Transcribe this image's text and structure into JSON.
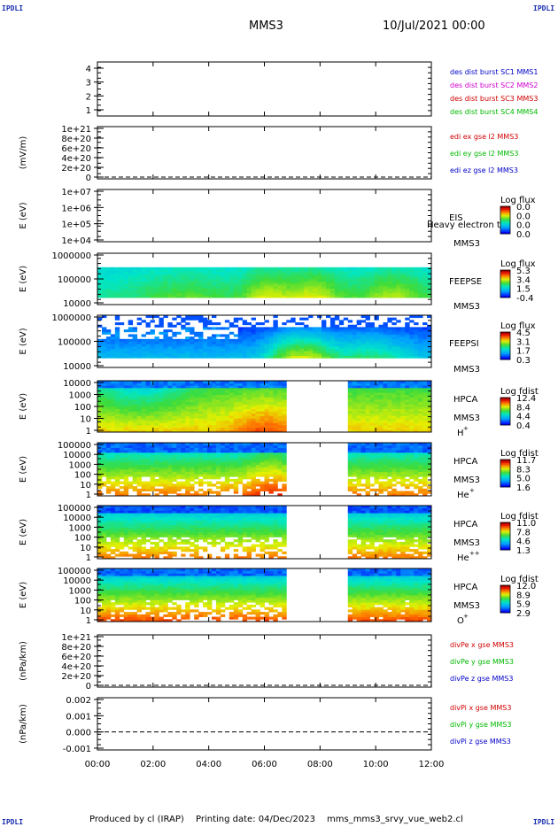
{
  "header": {
    "corner_label": "IPDLI",
    "spacecraft": "MMS3",
    "date": "10/Jul/2021 00:00"
  },
  "footer": {
    "produced_by": "Produced by cl (IRAP)",
    "printing_date": "Printing date: 04/Dec/2023",
    "filename": "mms_mms3_srvy_vue_web2.cl"
  },
  "colors": {
    "axis": "#000000",
    "blue_label": "#0000c8",
    "magenta_label": "#d000d0",
    "red_label": "#d00000",
    "green_label": "#00b800",
    "spectrogram_low": "#0000ff",
    "spectrogram_high": "#b40000"
  },
  "chart_data": {
    "x_tick_labels": [
      "00:00",
      "02:00",
      "04:00",
      "06:00",
      "08:00",
      "10:00",
      "12:00"
    ],
    "x_hours": [
      0,
      2,
      4,
      6,
      8,
      10,
      12
    ],
    "panels": [
      {
        "type": "line",
        "yticks": [
          "1",
          "2",
          "3",
          "4"
        ],
        "legend": [
          {
            "text": "des dist burst SC1 MMS1",
            "color": "#0000c8"
          },
          {
            "text": "des dist burst SC2 MMS2",
            "color": "#d000d0"
          },
          {
            "text": "des dist burst SC3 MMS3",
            "color": "#d00000"
          },
          {
            "text": "des dist burst SC4 MMS4",
            "color": "#00b800"
          }
        ]
      },
      {
        "type": "line",
        "ylabel": "(mV/m)",
        "yticks": [
          "1e+21",
          "8e+20",
          "6e+20",
          "4e+20",
          "2e+20",
          "0"
        ],
        "dashed_zero": true,
        "legend": [
          {
            "text": "edi ex gse l2 MMS3",
            "color": "#d00000"
          },
          {
            "text": "edi ey gse l2 MMS3",
            "color": "#00b800"
          },
          {
            "text": "edi ez gse l2 MMS3",
            "color": "#0000c8"
          }
        ]
      },
      {
        "type": "heatmap",
        "ylabel": "E (eV)",
        "yticks": [
          "1e+07",
          "1e+06",
          "1e+05",
          "1e+04"
        ],
        "instrument": "EIS",
        "spacecraft": "MMS3",
        "overlay_text": "Heavy electron to",
        "cbar_title": "Log flux",
        "cbar_values": [
          "0.0",
          "0.0",
          "0.0",
          "0.0"
        ],
        "profile": "empty"
      },
      {
        "type": "heatmap",
        "ylabel": "E (eV)",
        "yticks": [
          "1000000",
          "100000",
          "10000"
        ],
        "instrument": "FEEPSE",
        "spacecraft": "MMS3",
        "cbar_title": "Log flux",
        "cbar_values": [
          "5.3",
          "3.4",
          "1.5",
          "-0.4"
        ],
        "profile": "feepse",
        "gaps": []
      },
      {
        "type": "heatmap",
        "ylabel": "E (eV)",
        "yticks": [
          "1000000",
          "100000",
          "10000"
        ],
        "instrument": "FEEPSI",
        "spacecraft": "MMS3",
        "cbar_title": "Log flux",
        "cbar_values": [
          "4.5",
          "3.1",
          "1.7",
          "0.3"
        ],
        "profile": "feepsi",
        "gaps": []
      },
      {
        "type": "heatmap",
        "ylabel": "E (eV)",
        "yticks": [
          "10000",
          "1000",
          "100",
          "10",
          "1"
        ],
        "instrument": "HPCA",
        "spacecraft": "MMS3",
        "species": "H",
        "species_sup": "+",
        "cbar_title": "Log fdist",
        "cbar_values": [
          "12.4",
          "8.4",
          "4.4",
          "0.4"
        ],
        "profile": "hpca_h",
        "gaps": [
          [
            6.85,
            9.0
          ]
        ]
      },
      {
        "type": "heatmap",
        "ylabel": "E (eV)",
        "yticks": [
          "100000",
          "10000",
          "1000",
          "100",
          "10",
          "1"
        ],
        "instrument": "HPCA",
        "spacecraft": "MMS3",
        "species": "He",
        "species_sup": "+",
        "cbar_title": "Log fdist",
        "cbar_values": [
          "11.7",
          "8.3",
          "5.0",
          "1.6"
        ],
        "profile": "hpca_he",
        "gaps": [
          [
            6.85,
            9.0
          ]
        ]
      },
      {
        "type": "heatmap",
        "ylabel": "E (eV)",
        "yticks": [
          "100000",
          "10000",
          "1000",
          "100",
          "10",
          "1"
        ],
        "instrument": "HPCA",
        "spacecraft": "MMS3",
        "species": "He",
        "species_sup": "++",
        "cbar_title": "Log fdist",
        "cbar_values": [
          "11.0",
          "7.8",
          "4.6",
          "1.3"
        ],
        "profile": "hpca_hepp",
        "gaps": [
          [
            6.85,
            9.0
          ]
        ]
      },
      {
        "type": "heatmap",
        "ylabel": "E (eV)",
        "yticks": [
          "100000",
          "10000",
          "1000",
          "100",
          "10",
          "1"
        ],
        "instrument": "HPCA",
        "spacecraft": "MMS3",
        "species": "O",
        "species_sup": "+",
        "cbar_title": "Log fdist",
        "cbar_values": [
          "12.0",
          "8.9",
          "5.9",
          "2.9"
        ],
        "profile": "hpca_o",
        "gaps": [
          [
            6.85,
            9.0
          ]
        ]
      },
      {
        "type": "line",
        "ylabel": "(nPa/km)",
        "yticks": [
          "1e+21",
          "8e+20",
          "6e+20",
          "4e+20",
          "2e+20",
          "0"
        ],
        "dashed_zero": true,
        "legend": [
          {
            "text": "divPe x gse MMS3",
            "color": "#d00000"
          },
          {
            "text": "divPe y gse MMS3",
            "color": "#00b800"
          },
          {
            "text": "divPe z gse MMS3",
            "color": "#0000c8"
          }
        ]
      },
      {
        "type": "line",
        "ylabel": "(nPa/km)",
        "yticks": [
          "0.002",
          "0.001",
          "0.000",
          "-0.001"
        ],
        "dashed_zero": true,
        "legend": [
          {
            "text": "divPi x gse MMS3",
            "color": "#d00000"
          },
          {
            "text": "divPi y gse MMS3",
            "color": "#00b800"
          },
          {
            "text": "divPi z gse MMS3",
            "color": "#0000c8"
          }
        ]
      }
    ]
  }
}
